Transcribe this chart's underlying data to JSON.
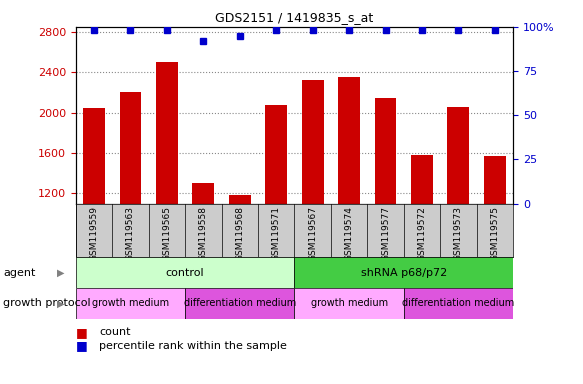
{
  "title": "GDS2151 / 1419835_s_at",
  "samples": [
    "GSM119559",
    "GSM119563",
    "GSM119565",
    "GSM119558",
    "GSM119568",
    "GSM119571",
    "GSM119567",
    "GSM119574",
    "GSM119577",
    "GSM119572",
    "GSM119573",
    "GSM119575"
  ],
  "counts": [
    2050,
    2200,
    2500,
    1300,
    1180,
    2080,
    2320,
    2350,
    2150,
    1580,
    2060,
    1570
  ],
  "percentile_ranks": [
    98,
    98,
    98,
    92,
    95,
    98,
    98,
    98,
    98,
    98,
    98,
    98
  ],
  "bar_color": "#cc0000",
  "dot_color": "#0000cc",
  "ylim_left": [
    1100,
    2850
  ],
  "ylim_right": [
    0,
    100
  ],
  "yticks_left": [
    1200,
    1600,
    2000,
    2400,
    2800
  ],
  "yticks_right": [
    0,
    25,
    50,
    75,
    100
  ],
  "agent_groups": [
    {
      "label": "control",
      "start": 0,
      "end": 6,
      "color": "#ccffcc"
    },
    {
      "label": "shRNA p68/p72",
      "start": 6,
      "end": 12,
      "color": "#44cc44"
    }
  ],
  "growth_groups": [
    {
      "label": "growth medium",
      "start": 0,
      "end": 3,
      "color": "#ffaaff"
    },
    {
      "label": "differentiation medium",
      "start": 3,
      "end": 6,
      "color": "#dd55dd"
    },
    {
      "label": "growth medium",
      "start": 6,
      "end": 9,
      "color": "#ffaaff"
    },
    {
      "label": "differentiation medium",
      "start": 9,
      "end": 12,
      "color": "#dd55dd"
    }
  ],
  "left_label_color": "#cc0000",
  "right_label_color": "#0000cc",
  "grid_color": "#888888",
  "agent_label": "agent",
  "growth_label": "growth protocol",
  "legend_count": "count",
  "legend_percentile": "percentile rank within the sample",
  "xlabel_bg_color": "#cccccc"
}
